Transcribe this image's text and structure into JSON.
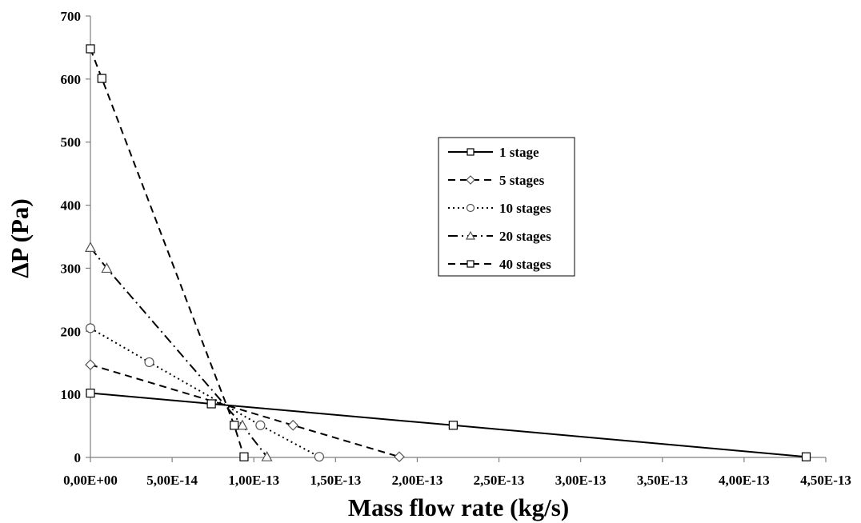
{
  "chart_data": {
    "type": "line",
    "xlabel": "Mass flow rate (kg/s)",
    "ylabel": "ΔP (Pa)",
    "xlim": [
      0,
      4.5e-13
    ],
    "ylim": [
      0,
      700
    ],
    "x_ticks": [
      {
        "value": 0,
        "label": "0,00E+00"
      },
      {
        "value": 5e-14,
        "label": "5,00E-14"
      },
      {
        "value": 1e-13,
        "label": "1,00E-13"
      },
      {
        "value": 1.5e-13,
        "label": "1,50E-13"
      },
      {
        "value": 2e-13,
        "label": "2,00E-13"
      },
      {
        "value": 2.5e-13,
        "label": "2,50E-13"
      },
      {
        "value": 3e-13,
        "label": "3,00E-13"
      },
      {
        "value": 3.5e-13,
        "label": "3,50E-13"
      },
      {
        "value": 4e-13,
        "label": "4,00E-13"
      },
      {
        "value": 4.5e-13,
        "label": "4,50E-13"
      }
    ],
    "y_ticks": [
      {
        "value": 0,
        "label": "0"
      },
      {
        "value": 100,
        "label": "100"
      },
      {
        "value": 200,
        "label": "200"
      },
      {
        "value": 300,
        "label": "300"
      },
      {
        "value": 400,
        "label": "400"
      },
      {
        "value": 500,
        "label": "500"
      },
      {
        "value": 600,
        "label": "600"
      },
      {
        "value": 700,
        "label": "700"
      }
    ],
    "grid": false,
    "legend_position": "right-center",
    "series": [
      {
        "name": "1 stage",
        "marker": "square",
        "line_style": "solid",
        "x": [
          0,
          7.4e-14,
          2.22e-13,
          4.38e-13
        ],
        "y": [
          102,
          85,
          51,
          1
        ]
      },
      {
        "name": "5 stages",
        "marker": "diamond",
        "line_style": "dashed",
        "x": [
          0,
          1.24e-13,
          1.89e-13
        ],
        "y": [
          147,
          51,
          1
        ]
      },
      {
        "name": "10 stages",
        "marker": "circle",
        "line_style": "dotted",
        "x": [
          0,
          3.6e-14,
          1.04e-13,
          1.4e-13
        ],
        "y": [
          205,
          151,
          51,
          1
        ]
      },
      {
        "name": "20 stages",
        "marker": "triangle",
        "line_style": "dashdot",
        "x": [
          0,
          1e-14,
          9.3e-14,
          1.08e-13
        ],
        "y": [
          333,
          300,
          51,
          1
        ]
      },
      {
        "name": "40 stages",
        "marker": "square",
        "line_style": "dashed",
        "x": [
          0,
          7e-15,
          8.8e-14,
          9.4e-14
        ],
        "y": [
          648,
          601,
          51,
          1
        ]
      }
    ]
  }
}
